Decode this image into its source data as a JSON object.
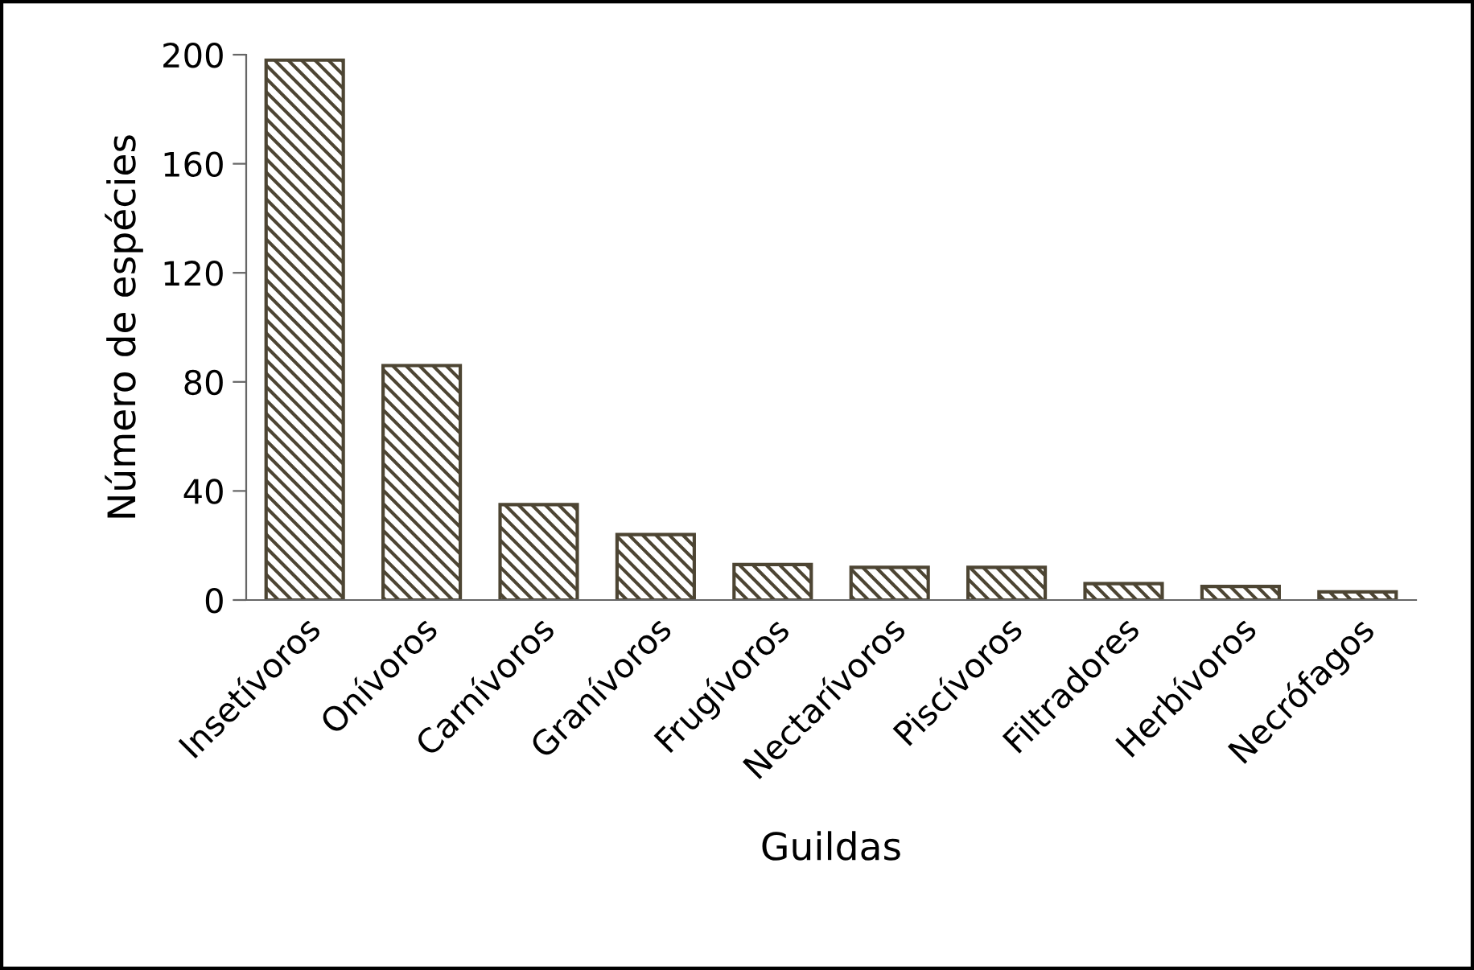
{
  "chart_data": {
    "type": "bar",
    "xlabel": "Guildas",
    "ylabel": "Número de espécies",
    "categories": [
      "Insetívoros",
      "Onívoros",
      "Carnívoros",
      "Granívoros",
      "Frugívoros",
      "Nectarívoros",
      "Piscívoros",
      "Filtradores",
      "Herbívoros",
      "Necrófagos"
    ],
    "values": [
      198,
      86,
      35,
      24,
      13,
      12,
      12,
      6,
      5,
      3
    ],
    "color": "#4d4533",
    "ylim": [
      0,
      200
    ],
    "yticks": [
      0,
      40,
      80,
      120,
      160,
      200
    ],
    "grid": false,
    "legend": false
  }
}
